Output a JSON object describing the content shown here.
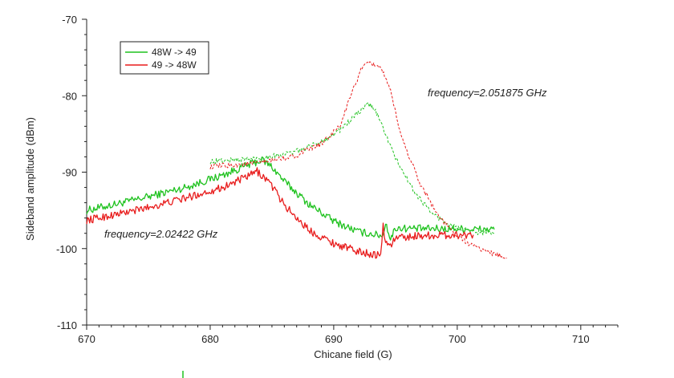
{
  "chart_data": {
    "type": "line",
    "title": "",
    "xlabel": "Chicane field (G)",
    "ylabel": "Sideband amplitude (dBm)",
    "xlim": [
      670,
      713
    ],
    "ylim": [
      -110,
      -70
    ],
    "xticks": [
      670,
      680,
      690,
      700,
      710
    ],
    "yticks": [
      -110,
      -100,
      -90,
      -80,
      -70
    ],
    "grid": false,
    "legend_position": "top-left",
    "colors": {
      "green": "#1fc21f",
      "red": "#e81c1c"
    },
    "legend": [
      {
        "label": "48W -> 49",
        "color": "#1fc21f"
      },
      {
        "label": "49 -> 48W",
        "color": "#e81c1c"
      }
    ],
    "annotations": [
      {
        "text": "frequency=2.051875 GHz",
        "x": 699.5,
        "y": -79.8
      },
      {
        "text": "frequency=2.02422 GHz",
        "x": 672.5,
        "y": -98.5
      }
    ],
    "series": [
      {
        "name": "48W -> 49",
        "color": "#1fc21f",
        "style": "solid",
        "frequency": "2.02422 GHz",
        "x": [
          670,
          674,
          678,
          681,
          683,
          684.2,
          685,
          686,
          688,
          690,
          692,
          693.5,
          694,
          694.2,
          694.6,
          695,
          697,
          700,
          703
        ],
        "y": [
          -95,
          -93.6,
          -92,
          -90.4,
          -89.1,
          -88.4,
          -89.3,
          -91.2,
          -94.2,
          -96.4,
          -97.8,
          -98.2,
          -98.3,
          -96.5,
          -98.8,
          -97.3,
          -97.4,
          -97.4,
          -97.5
        ]
      },
      {
        "name": "49 -> 48W",
        "color": "#e81c1c",
        "style": "solid",
        "frequency": "2.02422 GHz",
        "x": [
          670,
          674,
          678,
          681,
          683,
          683.8,
          684.8,
          686,
          688,
          690,
          692,
          693.8,
          694,
          694.2,
          694.6,
          695,
          697,
          700,
          701.3
        ],
        "y": [
          -96.3,
          -95,
          -93.4,
          -92,
          -90.6,
          -89.9,
          -91.3,
          -94.3,
          -97.6,
          -99.3,
          -100.4,
          -100.9,
          -97,
          -99.2,
          -99.6,
          -98.6,
          -98.3,
          -98.2,
          -98.2
        ]
      },
      {
        "name": "48W -> 49",
        "color": "#1fc21f",
        "style": "dashed",
        "frequency": "2.051875 GHz",
        "x": [
          680,
          684,
          687,
          689,
          690.5,
          692,
          692.8,
          693.3,
          694,
          695,
          696.5,
          698,
          699.5,
          701,
          703
        ],
        "y": [
          -88.6,
          -88.2,
          -87.3,
          -86,
          -84.5,
          -82.2,
          -81.1,
          -81.7,
          -84.2,
          -88.2,
          -92.5,
          -95.5,
          -97,
          -97.8,
          -98
        ]
      },
      {
        "name": "49 -> 48W",
        "color": "#e81c1c",
        "style": "dashed",
        "frequency": "2.051875 GHz",
        "x": [
          680,
          684,
          687,
          689,
          690.5,
          691.5,
          692.3,
          693,
          693.8,
          694.6,
          695.5,
          697,
          698.5,
          700,
          701.5,
          703,
          704
        ],
        "y": [
          -89.3,
          -88.8,
          -87.8,
          -86.3,
          -84,
          -79.5,
          -76.2,
          -75.8,
          -76.2,
          -79.5,
          -85.5,
          -91.5,
          -95.8,
          -98.5,
          -99.8,
          -100.7,
          -101.2
        ]
      }
    ]
  }
}
